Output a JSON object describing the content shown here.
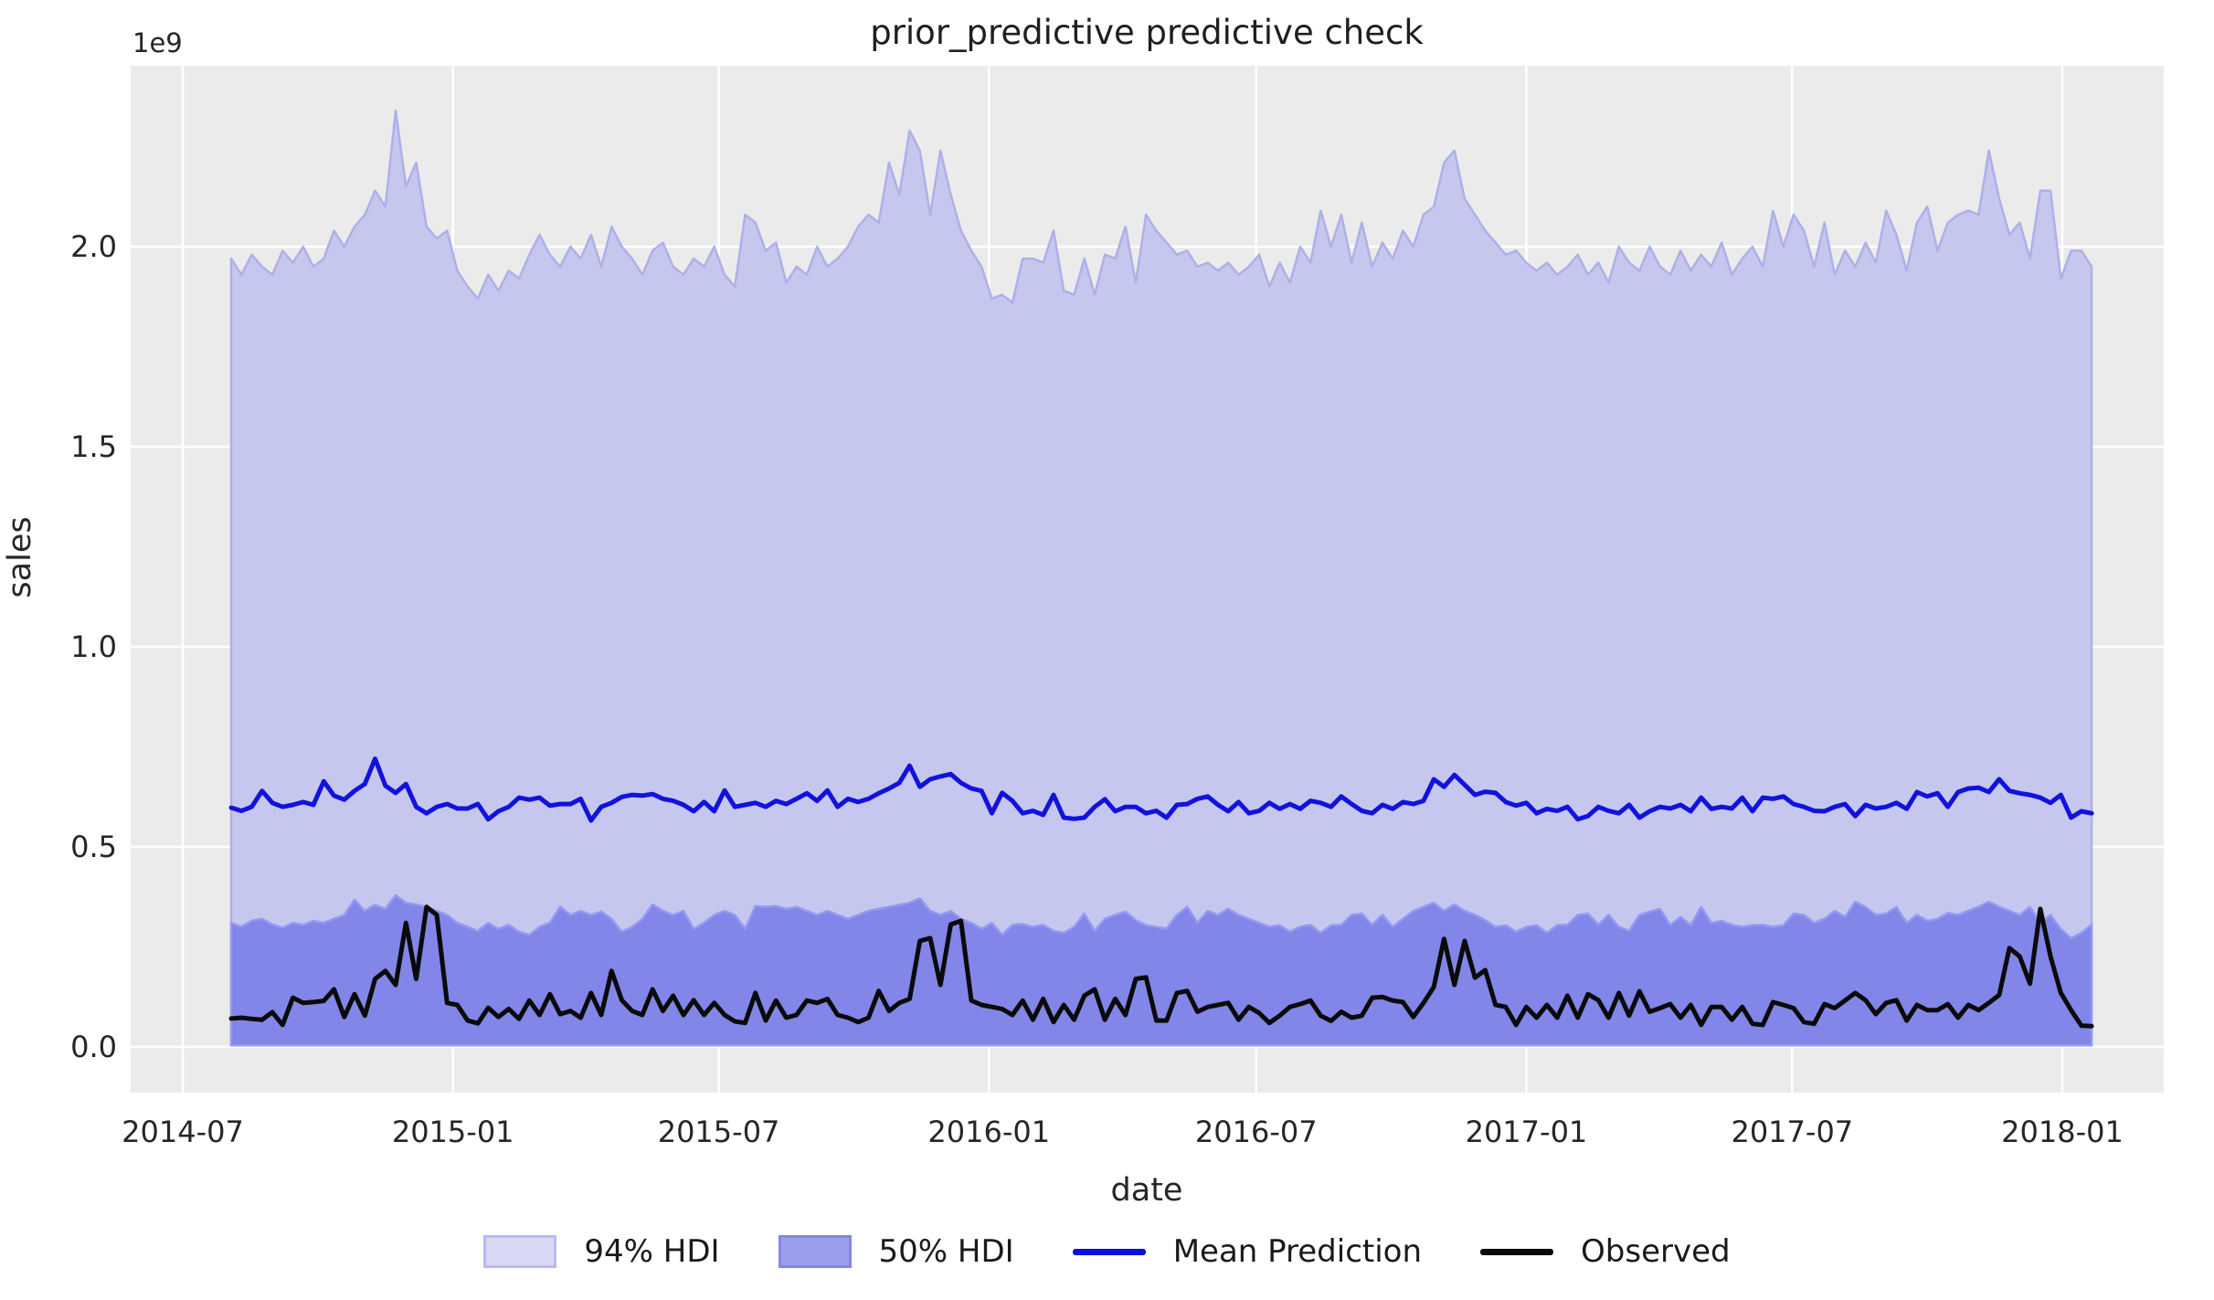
{
  "figure": {
    "title": "prior_predictive predictive check",
    "xlabel": "date",
    "ylabel": "sales",
    "y_offset_label": "1e9"
  },
  "colors": {
    "plot_background": "#ebebeb",
    "gridline": "#ffffff",
    "hdi94_fill": "#c6c7ee",
    "hdi94_edge": "#aeb0e8",
    "hdi50_fill": "#8286e8",
    "hdi50_edge": "#9499f4",
    "mean_line": "#1212dd",
    "observed_line": "#0a0a0a",
    "tick_text": "#262626"
  },
  "legend": [
    {
      "label": "94% HDI",
      "type": "patch",
      "fill": "#d7d8f4",
      "edge": "#b9bbee"
    },
    {
      "label": "50% HDI",
      "type": "patch",
      "fill": "#9b9eec",
      "edge": "#8487e2"
    },
    {
      "label": "Mean Prediction",
      "type": "line",
      "color": "#0d0de0"
    },
    {
      "label": "Observed",
      "type": "line",
      "color": "#0a0a0a"
    }
  ],
  "chart_data": {
    "type": "line",
    "title": "prior_predictive predictive check",
    "xlabel": "date",
    "ylabel": "sales",
    "y_scale": 1000000000,
    "y_offset_text": "1e9",
    "grid": true,
    "legend_position": "bottom",
    "x_start": "2014-08-03",
    "x_step_days": 7,
    "n_points": 182,
    "x_ticks": [
      "2014-07",
      "2015-01",
      "2015-07",
      "2016-01",
      "2016-07",
      "2017-01",
      "2017-07",
      "2018-01"
    ],
    "y_tick_labels": [
      "0.0",
      "0.5",
      "1.0",
      "1.5",
      "2.0"
    ],
    "y_tick_values": [
      0.0,
      0.5,
      1.0,
      1.5,
      2.0
    ],
    "ylim": [
      -0.114,
      2.452
    ],
    "series": [
      {
        "name": "94% HDI",
        "type": "band",
        "lower_const": 0.013,
        "upper": [
          1.97,
          1.93,
          1.98,
          1.95,
          1.93,
          1.99,
          1.96,
          2.0,
          1.95,
          1.97,
          2.04,
          2.0,
          2.05,
          2.08,
          2.14,
          2.1,
          2.34,
          2.15,
          2.21,
          2.05,
          2.02,
          2.04,
          1.94,
          1.9,
          1.87,
          1.93,
          1.89,
          1.94,
          1.92,
          1.98,
          2.03,
          1.98,
          1.95,
          2.0,
          1.97,
          2.03,
          1.95,
          2.05,
          2.0,
          1.97,
          1.93,
          1.99,
          2.01,
          1.95,
          1.93,
          1.97,
          1.95,
          2.0,
          1.93,
          1.9,
          2.08,
          2.06,
          1.99,
          2.01,
          1.91,
          1.95,
          1.93,
          2.0,
          1.95,
          1.97,
          2.0,
          2.05,
          2.08,
          2.06,
          2.21,
          2.13,
          2.29,
          2.24,
          2.08,
          2.24,
          2.13,
          2.04,
          1.99,
          1.95,
          1.87,
          1.88,
          1.86,
          1.97,
          1.97,
          1.96,
          2.04,
          1.89,
          1.88,
          1.97,
          1.88,
          1.98,
          1.97,
          2.05,
          1.91,
          2.08,
          2.04,
          2.01,
          1.98,
          1.99,
          1.95,
          1.96,
          1.94,
          1.96,
          1.93,
          1.95,
          1.98,
          1.9,
          1.96,
          1.91,
          2.0,
          1.96,
          2.09,
          2.0,
          2.08,
          1.96,
          2.06,
          1.95,
          2.01,
          1.97,
          2.04,
          2.0,
          2.08,
          2.1,
          2.21,
          2.24,
          2.12,
          2.08,
          2.04,
          2.01,
          1.98,
          1.99,
          1.96,
          1.94,
          1.96,
          1.93,
          1.95,
          1.98,
          1.93,
          1.96,
          1.91,
          2.0,
          1.96,
          1.94,
          2.0,
          1.95,
          1.93,
          1.99,
          1.94,
          1.98,
          1.95,
          2.01,
          1.93,
          1.97,
          2.0,
          1.95,
          2.09,
          2.0,
          2.08,
          2.04,
          1.95,
          2.06,
          1.93,
          1.99,
          1.95,
          2.01,
          1.96,
          2.09,
          2.03,
          1.94,
          2.06,
          2.1,
          1.99,
          2.06,
          2.08,
          2.09,
          2.08,
          2.24,
          2.12,
          2.03,
          2.06,
          1.97,
          2.14,
          2.14,
          1.92,
          1.99,
          1.99,
          1.95
        ]
      },
      {
        "name": "50% HDI",
        "type": "band",
        "lower_const": 0.004,
        "upper": [
          0.31,
          0.3,
          0.315,
          0.32,
          0.306,
          0.298,
          0.31,
          0.305,
          0.315,
          0.31,
          0.32,
          0.33,
          0.368,
          0.34,
          0.355,
          0.345,
          0.379,
          0.36,
          0.356,
          0.35,
          0.34,
          0.33,
          0.31,
          0.3,
          0.29,
          0.31,
          0.295,
          0.305,
          0.288,
          0.28,
          0.3,
          0.31,
          0.35,
          0.33,
          0.34,
          0.33,
          0.338,
          0.32,
          0.288,
          0.3,
          0.32,
          0.356,
          0.34,
          0.33,
          0.34,
          0.295,
          0.31,
          0.33,
          0.34,
          0.33,
          0.295,
          0.352,
          0.35,
          0.352,
          0.345,
          0.35,
          0.34,
          0.33,
          0.34,
          0.33,
          0.32,
          0.33,
          0.34,
          0.345,
          0.35,
          0.355,
          0.36,
          0.372,
          0.34,
          0.33,
          0.34,
          0.32,
          0.31,
          0.295,
          0.31,
          0.28,
          0.305,
          0.307,
          0.3,
          0.305,
          0.29,
          0.285,
          0.3,
          0.333,
          0.29,
          0.32,
          0.33,
          0.338,
          0.317,
          0.304,
          0.3,
          0.296,
          0.33,
          0.35,
          0.31,
          0.34,
          0.33,
          0.345,
          0.33,
          0.32,
          0.31,
          0.3,
          0.304,
          0.288,
          0.3,
          0.305,
          0.285,
          0.304,
          0.305,
          0.33,
          0.333,
          0.305,
          0.33,
          0.3,
          0.32,
          0.34,
          0.35,
          0.36,
          0.34,
          0.356,
          0.34,
          0.33,
          0.317,
          0.3,
          0.304,
          0.288,
          0.3,
          0.304,
          0.285,
          0.304,
          0.305,
          0.33,
          0.333,
          0.305,
          0.33,
          0.3,
          0.29,
          0.33,
          0.338,
          0.345,
          0.305,
          0.325,
          0.304,
          0.35,
          0.31,
          0.315,
          0.305,
          0.3,
          0.304,
          0.305,
          0.3,
          0.304,
          0.333,
          0.33,
          0.31,
          0.32,
          0.34,
          0.325,
          0.363,
          0.35,
          0.33,
          0.333,
          0.35,
          0.31,
          0.33,
          0.315,
          0.32,
          0.335,
          0.33,
          0.34,
          0.35,
          0.363,
          0.35,
          0.34,
          0.33,
          0.35,
          0.31,
          0.33,
          0.295,
          0.272,
          0.285,
          0.306
        ]
      },
      {
        "name": "Mean Prediction",
        "type": "line",
        "color": "#1212dd",
        "values": [
          0.598,
          0.59,
          0.6,
          0.64,
          0.61,
          0.6,
          0.605,
          0.612,
          0.605,
          0.664,
          0.628,
          0.618,
          0.64,
          0.657,
          0.72,
          0.653,
          0.635,
          0.657,
          0.6,
          0.584,
          0.6,
          0.607,
          0.596,
          0.596,
          0.607,
          0.569,
          0.589,
          0.6,
          0.623,
          0.618,
          0.623,
          0.603,
          0.607,
          0.607,
          0.62,
          0.566,
          0.6,
          0.61,
          0.625,
          0.63,
          0.628,
          0.632,
          0.62,
          0.615,
          0.605,
          0.589,
          0.612,
          0.589,
          0.641,
          0.6,
          0.605,
          0.61,
          0.6,
          0.615,
          0.607,
          0.62,
          0.634,
          0.615,
          0.641,
          0.6,
          0.62,
          0.612,
          0.62,
          0.634,
          0.646,
          0.66,
          0.703,
          0.65,
          0.669,
          0.676,
          0.682,
          0.66,
          0.646,
          0.64,
          0.584,
          0.635,
          0.615,
          0.584,
          0.59,
          0.58,
          0.63,
          0.573,
          0.57,
          0.573,
          0.6,
          0.619,
          0.589,
          0.6,
          0.6,
          0.584,
          0.59,
          0.573,
          0.605,
          0.607,
          0.62,
          0.626,
          0.605,
          0.589,
          0.612,
          0.584,
          0.59,
          0.61,
          0.595,
          0.607,
          0.595,
          0.615,
          0.61,
          0.6,
          0.626,
          0.607,
          0.59,
          0.584,
          0.605,
          0.595,
          0.612,
          0.607,
          0.615,
          0.669,
          0.65,
          0.68,
          0.655,
          0.63,
          0.638,
          0.635,
          0.612,
          0.603,
          0.61,
          0.584,
          0.595,
          0.59,
          0.6,
          0.569,
          0.577,
          0.6,
          0.59,
          0.584,
          0.605,
          0.573,
          0.589,
          0.6,
          0.596,
          0.605,
          0.589,
          0.623,
          0.595,
          0.6,
          0.596,
          0.623,
          0.589,
          0.623,
          0.62,
          0.626,
          0.607,
          0.6,
          0.59,
          0.589,
          0.6,
          0.607,
          0.577,
          0.605,
          0.596,
          0.6,
          0.61,
          0.595,
          0.637,
          0.626,
          0.634,
          0.6,
          0.637,
          0.646,
          0.648,
          0.637,
          0.669,
          0.64,
          0.634,
          0.63,
          0.623,
          0.61,
          0.63,
          0.573,
          0.589,
          0.584
        ]
      },
      {
        "name": "Observed",
        "type": "line",
        "color": "#0a0a0a",
        "values": [
          0.071,
          0.073,
          0.07,
          0.068,
          0.087,
          0.055,
          0.123,
          0.11,
          0.112,
          0.115,
          0.144,
          0.075,
          0.132,
          0.078,
          0.17,
          0.19,
          0.155,
          0.31,
          0.17,
          0.35,
          0.33,
          0.11,
          0.105,
          0.066,
          0.059,
          0.098,
          0.075,
          0.095,
          0.07,
          0.116,
          0.08,
          0.132,
          0.082,
          0.09,
          0.073,
          0.135,
          0.08,
          0.19,
          0.117,
          0.09,
          0.08,
          0.144,
          0.09,
          0.128,
          0.08,
          0.117,
          0.08,
          0.11,
          0.08,
          0.064,
          0.06,
          0.135,
          0.066,
          0.116,
          0.073,
          0.08,
          0.116,
          0.11,
          0.12,
          0.08,
          0.073,
          0.062,
          0.073,
          0.14,
          0.09,
          0.11,
          0.12,
          0.265,
          0.272,
          0.155,
          0.306,
          0.315,
          0.116,
          0.105,
          0.1,
          0.095,
          0.08,
          0.116,
          0.068,
          0.12,
          0.062,
          0.105,
          0.068,
          0.128,
          0.144,
          0.068,
          0.12,
          0.08,
          0.17,
          0.174,
          0.066,
          0.066,
          0.135,
          0.14,
          0.088,
          0.1,
          0.105,
          0.11,
          0.068,
          0.1,
          0.085,
          0.06,
          0.078,
          0.1,
          0.107,
          0.116,
          0.078,
          0.065,
          0.088,
          0.073,
          0.078,
          0.123,
          0.125,
          0.116,
          0.112,
          0.075,
          0.11,
          0.15,
          0.27,
          0.155,
          0.265,
          0.173,
          0.192,
          0.105,
          0.1,
          0.055,
          0.1,
          0.073,
          0.105,
          0.073,
          0.128,
          0.073,
          0.132,
          0.117,
          0.073,
          0.135,
          0.078,
          0.139,
          0.088,
          0.097,
          0.107,
          0.073,
          0.105,
          0.055,
          0.1,
          0.1,
          0.068,
          0.1,
          0.058,
          0.055,
          0.112,
          0.105,
          0.097,
          0.062,
          0.058,
          0.107,
          0.097,
          0.116,
          0.135,
          0.117,
          0.082,
          0.11,
          0.117,
          0.066,
          0.105,
          0.092,
          0.092,
          0.107,
          0.073,
          0.105,
          0.092,
          0.11,
          0.13,
          0.247,
          0.226,
          0.158,
          0.345,
          0.226,
          0.135,
          0.092,
          0.053,
          0.052
        ]
      }
    ]
  }
}
